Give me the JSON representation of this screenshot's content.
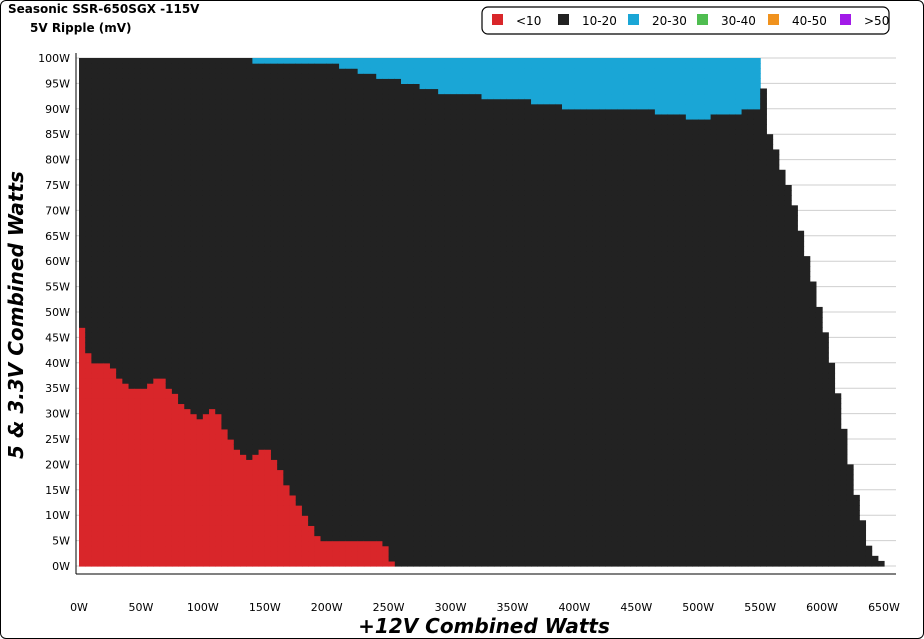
{
  "header": {
    "title": "Seasonic SSR-650SGX -115V",
    "subtitle": "5V Ripple (mV)"
  },
  "chart_data": {
    "type": "heatmap",
    "title": "Seasonic SSR-650SGX -115V",
    "subtitle": "5V Ripple (mV)",
    "xlabel": "+12V Combined Watts",
    "ylabel": "5 & 3.3V Combined Watts",
    "xlim": [
      0,
      650
    ],
    "ylim": [
      0,
      100
    ],
    "x_ticks": [
      "0W",
      "50W",
      "100W",
      "150W",
      "200W",
      "250W",
      "300W",
      "350W",
      "400W",
      "450W",
      "500W",
      "550W",
      "600W",
      "650W"
    ],
    "y_ticks": [
      "0W",
      "5W",
      "10W",
      "15W",
      "20W",
      "25W",
      "30W",
      "35W",
      "40W",
      "45W",
      "50W",
      "55W",
      "60W",
      "65W",
      "70W",
      "75W",
      "80W",
      "85W",
      "90W",
      "95W",
      "100W"
    ],
    "grid": true,
    "legend_position": "top-right",
    "legend": [
      {
        "label": "<10",
        "color": "#d9262a"
      },
      {
        "label": "10-20",
        "color": "#222222"
      },
      {
        "label": "20-30",
        "color": "#1aa6d6"
      },
      {
        "label": "30-40",
        "color": "#4fbd50"
      },
      {
        "label": "40-50",
        "color": "#f0921e"
      },
      {
        "label": ">50",
        "color": "#a21ae8"
      }
    ],
    "regions": {
      "coverage_boundary": [
        [
          0,
          100
        ],
        [
          550,
          100
        ],
        [
          555,
          87
        ],
        [
          575,
          73
        ],
        [
          585,
          63
        ],
        [
          600,
          49
        ],
        [
          610,
          37
        ],
        [
          620,
          23
        ],
        [
          630,
          11
        ],
        [
          640,
          2
        ],
        [
          650,
          0
        ]
      ],
      "red_below_10mV": [
        [
          0,
          49
        ],
        [
          5,
          45
        ],
        [
          10,
          40
        ],
        [
          25,
          40
        ],
        [
          40,
          35
        ],
        [
          55,
          35
        ],
        [
          65,
          38
        ],
        [
          80,
          33
        ],
        [
          95,
          29
        ],
        [
          110,
          31
        ],
        [
          120,
          26
        ],
        [
          135,
          21
        ],
        [
          150,
          24
        ],
        [
          160,
          20
        ],
        [
          175,
          13
        ],
        [
          195,
          5
        ],
        [
          245,
          5
        ],
        [
          255,
          0
        ]
      ],
      "blue_20_30mV": [
        [
          80,
          100
        ],
        [
          200,
          99
        ],
        [
          250,
          96
        ],
        [
          300,
          93
        ],
        [
          350,
          92
        ],
        [
          400,
          90
        ],
        [
          450,
          90
        ],
        [
          500,
          88
        ],
        [
          550,
          90
        ]
      ]
    }
  }
}
